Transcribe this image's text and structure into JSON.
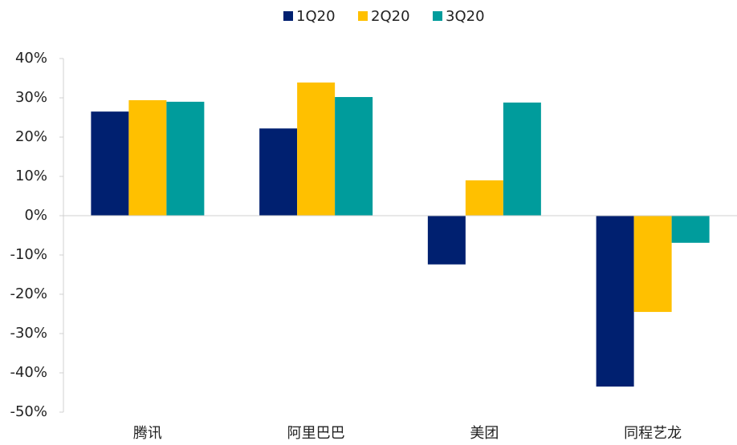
{
  "chart_data": {
    "type": "bar",
    "categories": [
      "腾讯",
      "阿里巴巴",
      "美团",
      "同程艺龙"
    ],
    "series": [
      {
        "name": "1Q20",
        "color": "#002070",
        "values": [
          26.5,
          22.2,
          -12.4,
          -43.5
        ]
      },
      {
        "name": "2Q20",
        "color": "#FFC000",
        "values": [
          29.4,
          33.9,
          9.0,
          -24.5
        ]
      },
      {
        "name": "3Q20",
        "color": "#009C9C",
        "values": [
          29.0,
          30.2,
          28.8,
          -6.9
        ]
      }
    ],
    "ylim": [
      -50,
      40
    ],
    "yticks": [
      {
        "value": -50,
        "label": "-50%"
      },
      {
        "value": -40,
        "label": "-40%"
      },
      {
        "value": -30,
        "label": "-30%"
      },
      {
        "value": -20,
        "label": "-20%"
      },
      {
        "value": -10,
        "label": "-10%"
      },
      {
        "value": 0,
        "label": "0%"
      },
      {
        "value": 10,
        "label": "10%"
      },
      {
        "value": 20,
        "label": "20%"
      },
      {
        "value": 30,
        "label": "30%"
      },
      {
        "value": 40,
        "label": "40%"
      }
    ],
    "grid": false,
    "legend": "top"
  }
}
